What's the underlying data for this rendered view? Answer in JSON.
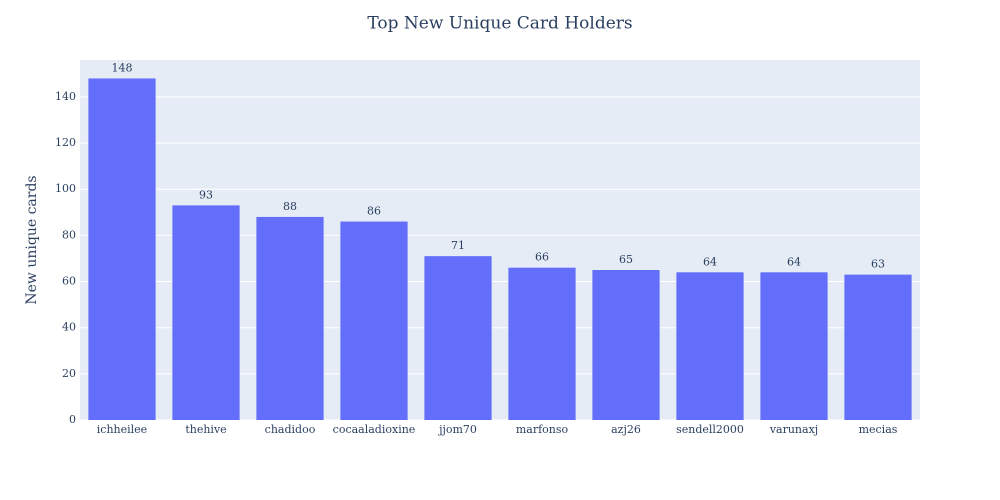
{
  "chart_data": {
    "type": "bar",
    "title": "Top New Unique Card Holders",
    "y_label": "New unique cards",
    "categories": [
      "ichheilee",
      "thehive",
      "chadidoo",
      "cocaaladioxine",
      "jjom70",
      "marfonso",
      "azj26",
      "sendell2000",
      "varunaxj",
      "mecias"
    ],
    "values": [
      148,
      93,
      88,
      86,
      71,
      66,
      65,
      64,
      64,
      63
    ],
    "color": "#636efa",
    "ylim": [
      0,
      156
    ],
    "yticks": [
      0,
      20,
      40,
      60,
      80,
      100,
      120,
      140
    ],
    "grid": true
  }
}
